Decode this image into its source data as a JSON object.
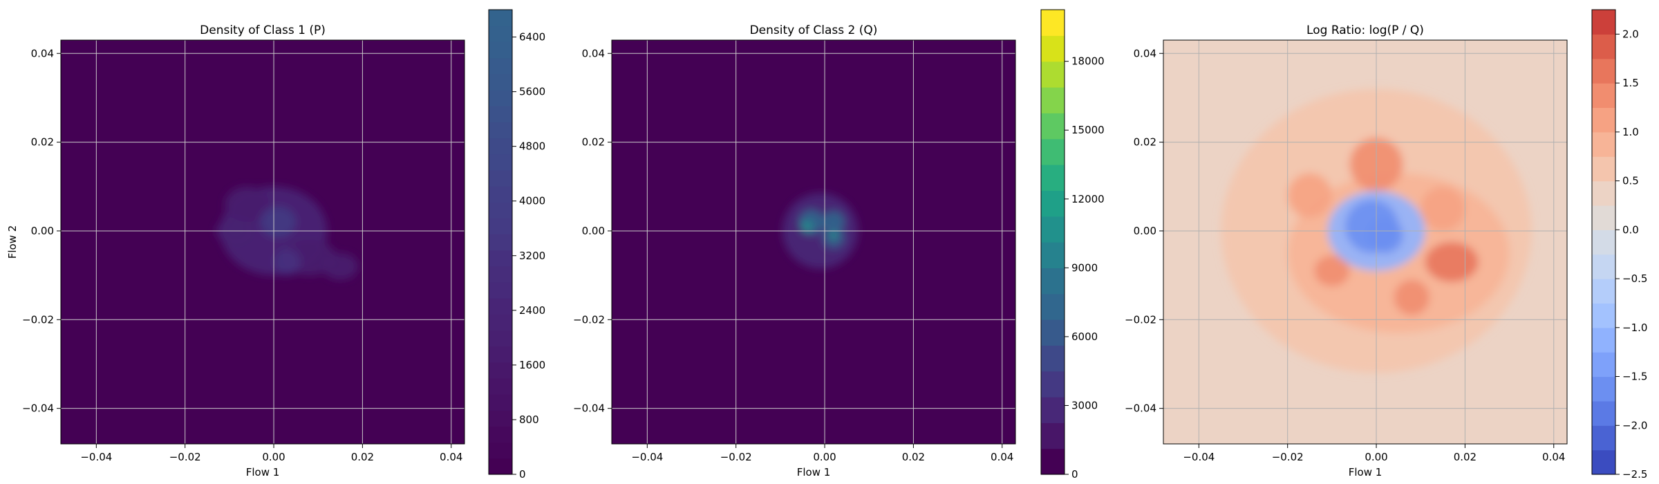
{
  "figure": {
    "colors": {
      "grid": "#b0b0b0",
      "frame": "#000000",
      "light_grid": "#c9c9c9"
    }
  },
  "chart_data": [
    {
      "type": "heatmap",
      "title": "Density of Class 1 (P)",
      "xlabel": "Flow 1",
      "ylabel": "Flow 2",
      "xlim": [
        -0.048,
        0.043
      ],
      "ylim": [
        -0.048,
        0.043
      ],
      "xticks": [
        -0.04,
        -0.02,
        0.0,
        0.02,
        0.04
      ],
      "xtick_labels": [
        "−0.04",
        "−0.02",
        "0.00",
        "0.02",
        "0.04"
      ],
      "yticks": [
        -0.04,
        -0.02,
        0.0,
        0.02,
        0.04
      ],
      "ytick_labels": [
        "−0.04",
        "−0.02",
        "0.00",
        "0.02",
        "0.04"
      ],
      "grid": true,
      "colormap": "viridis-truncated",
      "background_color": "#440154",
      "colorbar": {
        "min": 0,
        "max": 6800,
        "ticks": [
          0,
          800,
          1600,
          2400,
          3200,
          4000,
          4800,
          5600,
          6400
        ],
        "tick_labels": [
          "0",
          "800",
          "1600",
          "2400",
          "3200",
          "4000",
          "4800",
          "5600",
          "6400"
        ],
        "colors": [
          "#440154",
          "#450559",
          "#46085c",
          "#470d60",
          "#471164",
          "#481467",
          "#48186a",
          "#481c6e",
          "#482071",
          "#482374",
          "#482576",
          "#472a7a",
          "#472d7b",
          "#46307e",
          "#453781",
          "#443b84",
          "#433e85",
          "#424086",
          "#414487",
          "#3f4889",
          "#3e4a89",
          "#3d4e8a",
          "#3b528b",
          "#39568c",
          "#38598c",
          "#375b8d",
          "#355f8d",
          "#34618d",
          "#33638d"
        ]
      },
      "blobs": [
        {
          "x": 0.0,
          "y": 0.0,
          "sx": 0.012,
          "sy": 0.01,
          "level": 0.35
        },
        {
          "x": -0.006,
          "y": 0.006,
          "sx": 0.005,
          "sy": 0.004,
          "level": 0.25
        },
        {
          "x": 0.008,
          "y": -0.006,
          "sx": 0.006,
          "sy": 0.004,
          "level": 0.25
        },
        {
          "x": 0.001,
          "y": 0.002,
          "sx": 0.004,
          "sy": 0.0035,
          "level": 0.55
        },
        {
          "x": 0.003,
          "y": -0.007,
          "sx": 0.003,
          "sy": 0.003,
          "level": 0.45
        },
        {
          "x": -0.009,
          "y": 0.0,
          "sx": 0.004,
          "sy": 0.003,
          "level": 0.3
        },
        {
          "x": 0.015,
          "y": -0.008,
          "sx": 0.004,
          "sy": 0.003,
          "level": 0.25
        }
      ]
    },
    {
      "type": "heatmap",
      "title": "Density of Class 2 (Q)",
      "xlabel": "Flow 1",
      "ylabel": "",
      "xlim": [
        -0.048,
        0.043
      ],
      "ylim": [
        -0.048,
        0.043
      ],
      "xticks": [
        -0.04,
        -0.02,
        0.0,
        0.02,
        0.04
      ],
      "xtick_labels": [
        "−0.04",
        "−0.02",
        "0.00",
        "0.02",
        "0.04"
      ],
      "yticks": [
        -0.04,
        -0.02,
        0.0,
        0.02,
        0.04
      ],
      "ytick_labels": [
        "−0.04",
        "−0.02",
        "0.00",
        "0.02",
        "0.04"
      ],
      "grid": true,
      "colormap": "viridis",
      "background_color": "#440154",
      "colorbar": {
        "min": 0,
        "max": 20250,
        "ticks": [
          0,
          3000,
          6000,
          9000,
          12000,
          15000,
          18000
        ],
        "tick_labels": [
          "0",
          "3000",
          "6000",
          "9000",
          "12000",
          "15000",
          "18000"
        ],
        "colors": [
          "#440154",
          "#481668",
          "#482878",
          "#443983",
          "#3e4989",
          "#375a8c",
          "#31678e",
          "#2c728e",
          "#26828e",
          "#21918c",
          "#1fa088",
          "#28ae80",
          "#3fbc73",
          "#5ec962",
          "#84d44b",
          "#addc30",
          "#d8e219",
          "#fde725"
        ]
      },
      "blobs": [
        {
          "x": -0.001,
          "y": 0.0,
          "sx": 0.0085,
          "sy": 0.0085,
          "level": 0.1
        },
        {
          "x": -0.003,
          "y": 0.002,
          "sx": 0.0028,
          "sy": 0.0028,
          "level": 0.35
        },
        {
          "x": 0.002,
          "y": 0.002,
          "sx": 0.0025,
          "sy": 0.0025,
          "level": 0.35
        },
        {
          "x": 0.002,
          "y": -0.0015,
          "sx": 0.0025,
          "sy": 0.0025,
          "level": 0.32
        },
        {
          "x": -0.004,
          "y": 0.001,
          "sx": 0.0012,
          "sy": 0.0012,
          "level": 0.55
        },
        {
          "x": 0.002,
          "y": -0.001,
          "sx": 0.001,
          "sy": 0.001,
          "level": 0.5
        }
      ]
    },
    {
      "type": "heatmap",
      "title": "Log Ratio: log(P / Q)",
      "xlabel": "Flow 1",
      "ylabel": "",
      "xlim": [
        -0.048,
        0.043
      ],
      "ylim": [
        -0.048,
        0.043
      ],
      "xticks": [
        -0.04,
        -0.02,
        0.0,
        0.02,
        0.04
      ],
      "xtick_labels": [
        "−0.04",
        "−0.02",
        "0.00",
        "0.02",
        "0.04"
      ],
      "yticks": [
        -0.04,
        -0.02,
        0.0,
        0.02,
        0.04
      ],
      "ytick_labels": [
        "−0.04",
        "−0.02",
        "0.00",
        "0.02",
        "0.04"
      ],
      "grid": true,
      "colormap": "coolwarm",
      "background_color": "#ecd3c5",
      "colorbar": {
        "min": -2.5,
        "max": 2.25,
        "ticks": [
          -2.5,
          -2.0,
          -1.5,
          -1.0,
          -0.5,
          0.0,
          0.5,
          1.0,
          1.5,
          2.0
        ],
        "tick_labels": [
          "−2.5",
          "−2.0",
          "−1.5",
          "−1.0",
          "−0.5",
          "0.0",
          "0.5",
          "1.0",
          "1.5",
          "2.0"
        ],
        "colors": [
          "#3b4cc0",
          "#4a63d3",
          "#5b7ae5",
          "#6c8ff1",
          "#7ea1fa",
          "#90b2fe",
          "#a3c2fe",
          "#b4cdfa",
          "#c5d6f2",
          "#d3dbe7",
          "#e1dad6",
          "#ecd3c5",
          "#f4c5ad",
          "#f7b497",
          "#f6a283",
          "#f18d6f",
          "#e8765c",
          "#dc5d4a",
          "#cc403a"
        ]
      },
      "blobs": [
        {
          "x": 0.0,
          "y": 0.0,
          "sx": 0.035,
          "sy": 0.032,
          "level": 0.68
        },
        {
          "x": 0.005,
          "y": -0.005,
          "sx": 0.025,
          "sy": 0.018,
          "level": 0.72
        },
        {
          "x": 0.0,
          "y": 0.015,
          "sx": 0.006,
          "sy": 0.006,
          "level": 0.86
        },
        {
          "x": 0.017,
          "y": -0.007,
          "sx": 0.006,
          "sy": 0.0045,
          "level": 0.9
        },
        {
          "x": 0.008,
          "y": -0.015,
          "sx": 0.004,
          "sy": 0.004,
          "level": 0.85
        },
        {
          "x": -0.01,
          "y": -0.009,
          "sx": 0.004,
          "sy": 0.0035,
          "level": 0.82
        },
        {
          "x": 0.015,
          "y": 0.005,
          "sx": 0.005,
          "sy": 0.005,
          "level": 0.8
        },
        {
          "x": -0.015,
          "y": 0.008,
          "sx": 0.005,
          "sy": 0.005,
          "level": 0.78
        },
        {
          "x": 0.0,
          "y": 0.0,
          "sx": 0.011,
          "sy": 0.009,
          "level": 0.3
        },
        {
          "x": -0.001,
          "y": 0.001,
          "sx": 0.006,
          "sy": 0.006,
          "level": 0.18
        },
        {
          "x": 0.002,
          "y": -0.001,
          "sx": 0.004,
          "sy": 0.004,
          "level": 0.14
        }
      ]
    }
  ]
}
